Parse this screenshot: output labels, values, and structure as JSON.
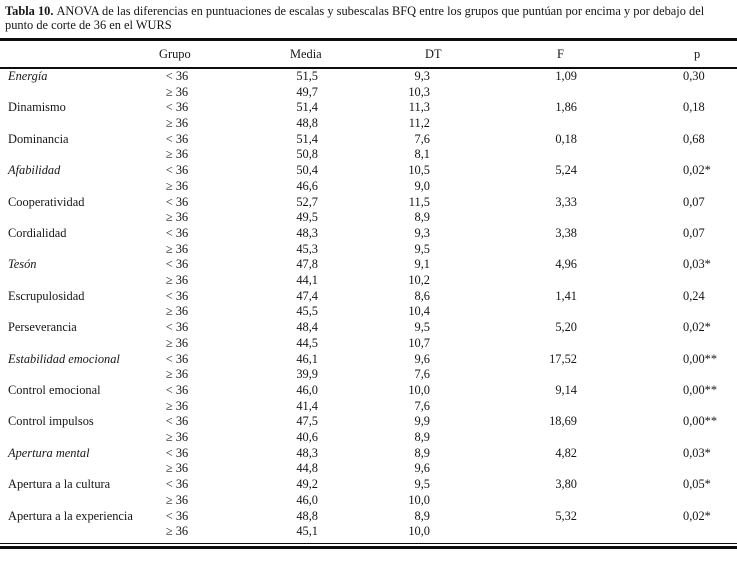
{
  "title": {
    "label": "Tabla 10.",
    "text": "ANOVA de las diferencias en puntuaciones de escalas y subescalas BFQ entre los grupos que puntúan por encima y por debajo del punto de corte de 36 en el WURS"
  },
  "table": {
    "headers": [
      "",
      "Grupo",
      "Media",
      "DT",
      "F",
      "p"
    ],
    "rows": [
      {
        "label": "Energía",
        "italic": true,
        "grupo": "< 36",
        "media": "51,5",
        "dt": "9,3",
        "f": "1,09",
        "p": "0,30"
      },
      {
        "label": "",
        "italic": false,
        "grupo": "≥ 36",
        "media": "49,7",
        "dt": "10,3",
        "f": "",
        "p": ""
      },
      {
        "label": "Dinamismo",
        "italic": false,
        "grupo": "< 36",
        "media": "51,4",
        "dt": "11,3",
        "f": "1,86",
        "p": "0,18"
      },
      {
        "label": "",
        "italic": false,
        "grupo": "≥ 36",
        "media": "48,8",
        "dt": "11,2",
        "f": "",
        "p": ""
      },
      {
        "label": "Dominancia",
        "italic": false,
        "grupo": "< 36",
        "media": "51,4",
        "dt": "7,6",
        "f": "0,18",
        "p": "0,68"
      },
      {
        "label": "",
        "italic": false,
        "grupo": "≥ 36",
        "media": "50,8",
        "dt": "8,1",
        "f": "",
        "p": ""
      },
      {
        "label": "Afabilidad",
        "italic": true,
        "grupo": "< 36",
        "media": "50,4",
        "dt": "10,5",
        "f": "5,24",
        "p": "0,02*"
      },
      {
        "label": "",
        "italic": false,
        "grupo": "≥ 36",
        "media": "46,6",
        "dt": "9,0",
        "f": "",
        "p": ""
      },
      {
        "label": "Cooperatividad",
        "italic": false,
        "grupo": "< 36",
        "media": "52,7",
        "dt": "11,5",
        "f": "3,33",
        "p": "0,07"
      },
      {
        "label": "",
        "italic": false,
        "grupo": "≥ 36",
        "media": "49,5",
        "dt": "8,9",
        "f": "",
        "p": ""
      },
      {
        "label": "Cordialidad",
        "italic": false,
        "grupo": "< 36",
        "media": "48,3",
        "dt": "9,3",
        "f": "3,38",
        "p": "0,07"
      },
      {
        "label": "",
        "italic": false,
        "grupo": "≥ 36",
        "media": "45,3",
        "dt": "9,5",
        "f": "",
        "p": ""
      },
      {
        "label": "Tesón",
        "italic": true,
        "grupo": "< 36",
        "media": "47,8",
        "dt": "9,1",
        "f": "4,96",
        "p": "0,03*"
      },
      {
        "label": "",
        "italic": false,
        "grupo": "≥ 36",
        "media": "44,1",
        "dt": "10,2",
        "f": "",
        "p": ""
      },
      {
        "label": "Escrupulosidad",
        "italic": false,
        "grupo": "< 36",
        "media": "47,4",
        "dt": "8,6",
        "f": "1,41",
        "p": "0,24"
      },
      {
        "label": "",
        "italic": false,
        "grupo": "≥ 36",
        "media": "45,5",
        "dt": "10,4",
        "f": "",
        "p": ""
      },
      {
        "label": "Perseverancia",
        "italic": false,
        "grupo": "< 36",
        "media": "48,4",
        "dt": "9,5",
        "f": "5,20",
        "p": "0,02*"
      },
      {
        "label": "",
        "italic": false,
        "grupo": "≥ 36",
        "media": "44,5",
        "dt": "10,7",
        "f": "",
        "p": ""
      },
      {
        "label": "Estabilidad emocional",
        "italic": true,
        "grupo": "< 36",
        "media": "46,1",
        "dt": "9,6",
        "f": "17,52",
        "p": "0,00**"
      },
      {
        "label": "",
        "italic": false,
        "grupo": "≥ 36",
        "media": "39,9",
        "dt": "7,6",
        "f": "",
        "p": ""
      },
      {
        "label": "Control emocional",
        "italic": false,
        "grupo": "< 36",
        "media": "46,0",
        "dt": "10,0",
        "f": "9,14",
        "p": "0,00**"
      },
      {
        "label": "",
        "italic": false,
        "grupo": "≥ 36",
        "media": "41,4",
        "dt": "7,6",
        "f": "",
        "p": ""
      },
      {
        "label": "Control impulsos",
        "italic": false,
        "grupo": "< 36",
        "media": "47,5",
        "dt": "9,9",
        "f": "18,69",
        "p": "0,00**"
      },
      {
        "label": "",
        "italic": false,
        "grupo": "≥ 36",
        "media": "40,6",
        "dt": "8,9",
        "f": "",
        "p": ""
      },
      {
        "label": "Apertura mental",
        "italic": true,
        "grupo": "< 36",
        "media": "48,3",
        "dt": "8,9",
        "f": "4,82",
        "p": "0,03*"
      },
      {
        "label": "",
        "italic": false,
        "grupo": "≥ 36",
        "media": "44,8",
        "dt": "9,6",
        "f": "",
        "p": ""
      },
      {
        "label": "Apertura a la cultura",
        "italic": false,
        "grupo": "< 36",
        "media": "49,2",
        "dt": "9,5",
        "f": "3,80",
        "p": "0,05*"
      },
      {
        "label": "",
        "italic": false,
        "grupo": "≥ 36",
        "media": "46,0",
        "dt": "10,0",
        "f": "",
        "p": ""
      },
      {
        "label": "Apertura a la experiencia",
        "italic": false,
        "grupo": "< 36",
        "media": "48,8",
        "dt": "8,9",
        "f": "5,32",
        "p": "0,02*"
      },
      {
        "label": "",
        "italic": false,
        "grupo": "≥ 36",
        "media": "45,1",
        "dt": "10,0",
        "f": "",
        "p": ""
      }
    ]
  }
}
